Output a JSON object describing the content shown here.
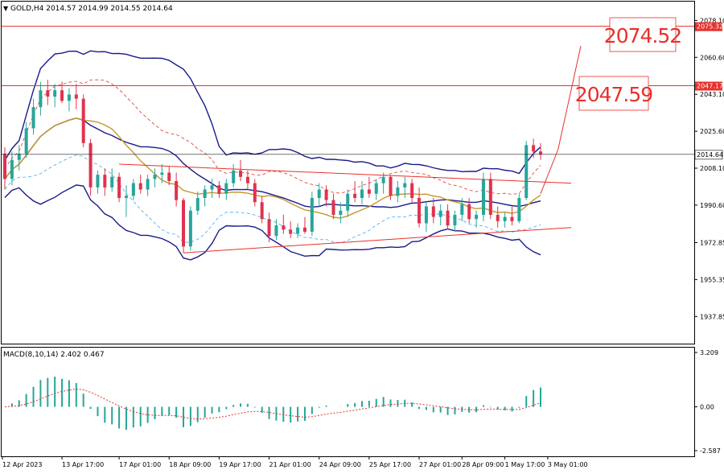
{
  "header": {
    "symbol_label": "GOLD,H4 2014.57 2014.99 2014.55 2014.64",
    "macd_label": "MACD(8,10,14) 2.402 0.467"
  },
  "colors": {
    "bull": "#26a69a",
    "bear": "#e0324e",
    "bollinger": "#1a1a8c",
    "envelope_red": "#e8302c",
    "envelope_blue": "#3fa9f5",
    "ma": "#c8962e",
    "level_line": "#e8302c",
    "level_text": "#e8302c",
    "macd_signal": "#e8302c",
    "current_price_line": "#222222"
  },
  "price_axis": {
    "ticks": [
      "2078.10",
      "2060.60",
      "2043.10",
      "2025.60",
      "2008.10",
      "1990.60",
      "1972.85",
      "1955.35",
      "1937.85"
    ],
    "current_price": "2014.64"
  },
  "macd_axis": {
    "ticks": [
      "3.209",
      "0.00",
      "-2.587"
    ]
  },
  "time_axis": {
    "labels": [
      "12 Apr 2023",
      "13 Apr 17:00",
      "17 Apr 01:00",
      "18 Apr 09:00",
      "19 Apr 17:00",
      "21 Apr 01:00",
      "24 Apr 09:00",
      "25 Apr 17:00",
      "27 Apr 01:00",
      "28 Apr 09:00",
      "1 May 17:00",
      "3 May 01:00"
    ]
  },
  "levels": [
    {
      "price": 2075.32,
      "axis_tag": "2075.32",
      "target_label": "2074.52"
    },
    {
      "price": 2047.17,
      "axis_tag": "2047.17",
      "target_label": "2047.59"
    }
  ],
  "chart_data": {
    "type": "candlestick",
    "symbol": "GOLD",
    "timeframe": "H4",
    "ylim": [
      1925,
      2087
    ],
    "candles": [
      [
        2015,
        2018,
        1998,
        2003
      ],
      [
        2003,
        2016,
        2000,
        2012
      ],
      [
        2012,
        2019,
        2007,
        2015
      ],
      [
        2015,
        2030,
        2013,
        2027
      ],
      [
        2027,
        2041,
        2024,
        2037
      ],
      [
        2037,
        2049,
        2033,
        2045
      ],
      [
        2045,
        2050,
        2038,
        2042
      ],
      [
        2042,
        2048,
        2037,
        2045
      ],
      [
        2045,
        2049,
        2039,
        2040
      ],
      [
        2040,
        2046,
        2035,
        2043
      ],
      [
        2043,
        2048,
        2036,
        2041
      ],
      [
        2041,
        2043,
        2018,
        2020
      ],
      [
        2020,
        2022,
        1995,
        1999
      ],
      [
        1999,
        2007,
        1996,
        2005
      ],
      [
        2005,
        2008,
        1995,
        1999
      ],
      [
        1999,
        2008,
        1997,
        2004
      ],
      [
        2004,
        2006,
        1992,
        1994
      ],
      [
        1994,
        2000,
        1985,
        1995
      ],
      [
        1995,
        2003,
        1993,
        2001
      ],
      [
        2001,
        2005,
        1996,
        1998
      ],
      [
        1998,
        2005,
        1995,
        2003
      ],
      [
        2003,
        2008,
        1999,
        2005
      ],
      [
        2005,
        2010,
        2001,
        2006
      ],
      [
        2006,
        2009,
        2000,
        2002
      ],
      [
        2002,
        2006,
        1990,
        1993
      ],
      [
        1993,
        1994,
        1968,
        1971
      ],
      [
        1971,
        1990,
        1969,
        1988
      ],
      [
        1988,
        1997,
        1986,
        1994
      ],
      [
        1994,
        2000,
        1990,
        1998
      ],
      [
        1998,
        2003,
        1994,
        2000
      ],
      [
        2000,
        2002,
        1994,
        1996
      ],
      [
        1996,
        2003,
        1993,
        2001
      ],
      [
        2001,
        2010,
        1999,
        2007
      ],
      [
        2007,
        2012,
        2002,
        2004
      ],
      [
        2004,
        2007,
        1998,
        2001
      ],
      [
        2001,
        2003,
        1990,
        1992
      ],
      [
        1992,
        1995,
        1982,
        1984
      ],
      [
        1984,
        1987,
        1973,
        1976
      ],
      [
        1976,
        1984,
        1974,
        1981
      ],
      [
        1981,
        1986,
        1977,
        1979
      ],
      [
        1979,
        1983,
        1975,
        1977
      ],
      [
        1977,
        1982,
        1975,
        1980
      ],
      [
        1980,
        1985,
        1977,
        1978
      ],
      [
        1978,
        1997,
        1976,
        1994
      ],
      [
        1994,
        2001,
        1990,
        1998
      ],
      [
        1998,
        2000,
        1990,
        1993
      ],
      [
        1993,
        1996,
        1984,
        1986
      ],
      [
        1986,
        1992,
        1982,
        1988
      ],
      [
        1988,
        1998,
        1985,
        1996
      ],
      [
        1996,
        2002,
        1992,
        1994
      ],
      [
        1994,
        2002,
        1991,
        1998
      ],
      [
        1998,
        2004,
        1994,
        1996
      ],
      [
        1996,
        2003,
        1993,
        2001
      ],
      [
        2001,
        2006,
        1996,
        2004
      ],
      [
        2004,
        2005,
        1993,
        1995
      ],
      [
        1995,
        2002,
        1992,
        1999
      ],
      [
        1999,
        2004,
        1994,
        2001
      ],
      [
        2001,
        2003,
        1992,
        1994
      ],
      [
        1994,
        1999,
        1980,
        1982
      ],
      [
        1982,
        1992,
        1978,
        1990
      ],
      [
        1990,
        1994,
        1982,
        1985
      ],
      [
        1985,
        1991,
        1981,
        1988
      ],
      [
        1988,
        1991,
        1979,
        1981
      ],
      [
        1981,
        1988,
        1978,
        1986
      ],
      [
        1986,
        1994,
        1983,
        1991
      ],
      [
        1991,
        1994,
        1982,
        1984
      ],
      [
        1984,
        1988,
        1980,
        1986
      ],
      [
        1986,
        2006,
        1983,
        2003
      ],
      [
        2003,
        2006,
        1984,
        1986
      ],
      [
        1986,
        1990,
        1980,
        1983
      ],
      [
        1983,
        1987,
        1980,
        1985
      ],
      [
        1985,
        1990,
        1981,
        1983
      ],
      [
        1983,
        1996,
        1982,
        1994
      ],
      [
        1994,
        2021,
        1993,
        2019
      ],
      [
        2019,
        2022,
        2013,
        2016
      ],
      [
        2016,
        2020,
        2012,
        2014.64
      ]
    ]
  }
}
